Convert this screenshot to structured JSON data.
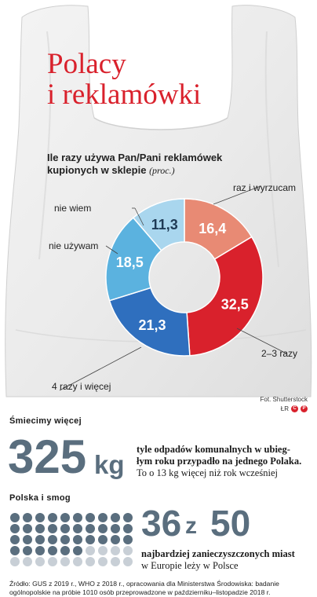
{
  "title": {
    "line1": "Polacy",
    "line2": "i reklamówki"
  },
  "chart_data": {
    "type": "pie",
    "title": "Ile razy używa Pan/Pani reklamówek kupionych w sklepie",
    "unit": "(proc.)",
    "categories": [
      "raz i wyrzucam",
      "2–3 razy",
      "4 razy i więcej",
      "nie używam",
      "nie wiem"
    ],
    "values": [
      16.4,
      32.5,
      21.3,
      18.5,
      11.3
    ],
    "value_labels": [
      "16,4",
      "32,5",
      "21,3",
      "18,5",
      "11,3"
    ],
    "colors": [
      "#e88a74",
      "#d9212c",
      "#2f6fbe",
      "#5bb2df",
      "#a9d6ee"
    ]
  },
  "photo_credit": "Fot. Shutterstock",
  "logo_text": "ŁR",
  "waste": {
    "heading": "Śmiecimy więcej",
    "number": "325",
    "unit": "kg",
    "line1": "tyle odpadów komunalnych w ubieg-",
    "line2": "łym roku przypadło na jednego Polaka.",
    "line3": "To o 13 kg więcej niż rok wcześniej"
  },
  "smog": {
    "heading": "Polska i smog",
    "number_a": "36",
    "connector": "z",
    "number_b": "50",
    "line1": "najbardziej zanieczyszczonych miast",
    "line2": "w Europie leży w Polsce",
    "highlighted": 36,
    "total": 50,
    "colors": {
      "on": "#5a6e7e",
      "off": "#c8cfd6"
    }
  },
  "source": "Źródło: GUS z 2019 r., WHO z 2018 r., opracowania dla Ministerstwa Środowiska: badanie ogólnopolskie na próbie 1010 osób przeprowadzone w październiku–listopadzie 2018 r."
}
